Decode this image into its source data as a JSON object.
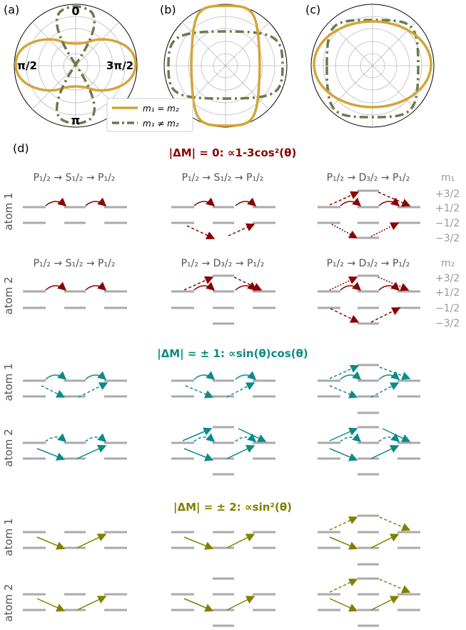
{
  "panels": {
    "a": "(a)",
    "b": "(b)",
    "c": "(c)",
    "d": "(d)",
    "a_top": "0",
    "a_bottom": "π",
    "a_left": "π/2",
    "a_right": "3π/2"
  },
  "legend": {
    "equal": "m₁ = m₂",
    "unequal": "m₁ ≠ m₂"
  },
  "sections": {
    "dm0": "|ΔM| = 0: ∝1-3cos²(θ)",
    "dm1": "|ΔM| = ± 1: ∝sin(θ)cos(θ)",
    "dm2": "|ΔM| = ± 2: ∝sin²(θ)"
  },
  "row_labels": {
    "atom1": "atom 1",
    "atom2": "atom 2"
  },
  "transitions": {
    "p_s_p": "P₁/₂ → S₁/₂ → P₁/₂",
    "p_d_p": "P₁/₂ → D₃/₂ → P₁/₂"
  },
  "m_labels": {
    "m1": "m₁",
    "m2": "m₂",
    "values": [
      "+3/2",
      "+1/2",
      "−1/2",
      "−3/2"
    ]
  },
  "colors": {
    "gold": "#d4a537",
    "olive": "#6b7a4a",
    "dark_red": "#8b0000",
    "teal": "#0d8a8a",
    "olive_yellow": "#808000",
    "level_gray": "#aaaaaa",
    "label_gray": "#999999"
  }
}
